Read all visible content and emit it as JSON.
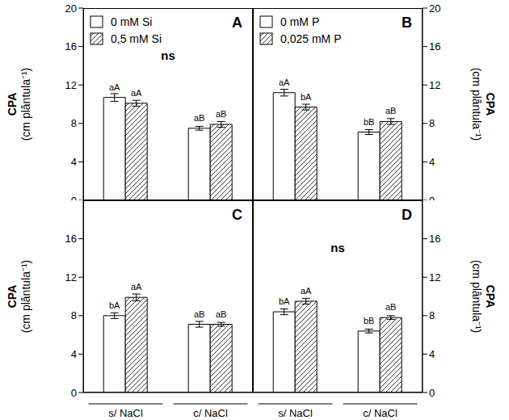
{
  "chart_data": [
    {
      "type": "bar",
      "title": "A",
      "ylabel": [
        "CPA",
        "(cm plântula⁻¹)"
      ],
      "categories": [
        null,
        null
      ],
      "ylim": [
        0,
        20
      ],
      "yticks": [
        0,
        4,
        8,
        12,
        16,
        20
      ],
      "tick_labels": "y",
      "legend": "upper left",
      "annotation": "ns",
      "series": [
        {
          "name": "0 mM Si",
          "color": "#ffffff",
          "values": [
            10.7,
            7.5
          ],
          "errors": [
            0.4,
            0.2
          ],
          "letters": [
            "aA",
            "aB"
          ]
        },
        {
          "name": "0,5 mM Si",
          "color": "#ffffff",
          "marker": "hatch",
          "values": [
            10.1,
            7.9
          ],
          "errors": [
            0.3,
            0.3
          ],
          "letters": [
            "aA",
            "aB"
          ]
        }
      ]
    },
    {
      "type": "bar",
      "title": "B",
      "ylabel": [
        "CPA",
        "(cm plântula⁻¹)"
      ],
      "categories": [
        null,
        null
      ],
      "ylim": [
        0,
        20
      ],
      "yticks": [
        0,
        4,
        8,
        12,
        16,
        20
      ],
      "tick_labels": "y",
      "legend": "upper left",
      "series": [
        {
          "name": "0 mM P",
          "color": "#ffffff",
          "values": [
            11.2,
            7.1
          ],
          "errors": [
            0.35,
            0.25
          ],
          "letters": [
            "aA",
            "bB"
          ]
        },
        {
          "name": "0,025 mM P",
          "color": "#ffffff",
          "marker": "hatch",
          "values": [
            9.7,
            8.2
          ],
          "errors": [
            0.3,
            0.3
          ],
          "letters": [
            "bA",
            "aB"
          ]
        }
      ]
    },
    {
      "type": "bar",
      "title": "C",
      "ylabel": [
        "CPA",
        "(cm plântula⁻¹)"
      ],
      "categories": [
        "s/ NaCl",
        "c/ NaCl"
      ],
      "ylim": [
        0,
        20
      ],
      "yticks": [
        0,
        4,
        8,
        12,
        16
      ],
      "series": [
        {
          "color": "#ffffff",
          "values": [
            8.0,
            7.1
          ],
          "errors": [
            0.3,
            0.3
          ],
          "letters": [
            "bA",
            "aB"
          ]
        },
        {
          "color": "#ffffff",
          "marker": "hatch",
          "values": [
            9.9,
            7.1
          ],
          "errors": [
            0.35,
            0.2
          ],
          "letters": [
            "aA",
            "aB"
          ]
        }
      ]
    },
    {
      "type": "bar",
      "title": "D",
      "ylabel": [
        "CPA",
        "(cm plântula⁻¹)"
      ],
      "categories": [
        "s/ NaCl",
        "c/ NaCl"
      ],
      "ylim": [
        0,
        20
      ],
      "yticks": [
        0,
        4,
        8,
        12,
        16
      ],
      "annotation": "ns",
      "series": [
        {
          "color": "#ffffff",
          "values": [
            8.4,
            6.4
          ],
          "errors": [
            0.3,
            0.2
          ],
          "letters": [
            "bA",
            "bB"
          ]
        },
        {
          "color": "#ffffff",
          "marker": "hatch",
          "values": [
            9.5,
            7.8
          ],
          "errors": [
            0.3,
            0.2
          ],
          "letters": [
            "aA",
            "aB"
          ]
        }
      ]
    }
  ]
}
